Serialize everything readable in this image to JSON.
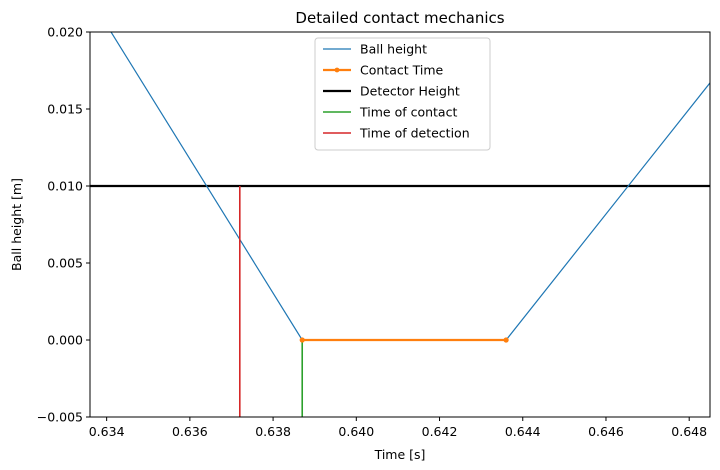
{
  "chart_data": {
    "type": "line",
    "title": "Detailed contact mechanics",
    "xlabel": "Time [s]",
    "ylabel": "Ball height [m]",
    "xlim": [
      0.6336,
      0.6485
    ],
    "ylim": [
      -0.005,
      0.02
    ],
    "xticks": [
      0.634,
      0.636,
      0.638,
      0.64,
      0.642,
      0.644,
      0.646,
      0.648
    ],
    "xtick_labels": [
      "0.634",
      "0.636",
      "0.638",
      "0.640",
      "0.642",
      "0.644",
      "0.646",
      "0.648"
    ],
    "yticks": [
      -0.005,
      0.0,
      0.005,
      0.01,
      0.015,
      0.02
    ],
    "ytick_labels": [
      "−0.005",
      "0.000",
      "0.005",
      "0.010",
      "0.015",
      "0.020"
    ],
    "grid": false,
    "legend_position": "top-center",
    "series": [
      {
        "name": "Ball height",
        "kind": "line",
        "color": "#1f77b4",
        "points": [
          [
            0.6336,
            0.0222
          ],
          [
            0.6387,
            0.0
          ],
          [
            0.6436,
            0.0
          ],
          [
            0.649,
            0.0184
          ]
        ]
      },
      {
        "name": "Contact Time",
        "kind": "line-markers",
        "color": "#ff7f0e",
        "points": [
          [
            0.6387,
            0.0
          ],
          [
            0.6436,
            0.0
          ]
        ]
      },
      {
        "name": "Detector Height",
        "kind": "hline",
        "color": "#000000",
        "y": 0.01
      },
      {
        "name": "Time of contact",
        "kind": "vline-segment",
        "color": "#2ca02c",
        "x": 0.6387,
        "y_from": -0.005,
        "y_to": 0.0
      },
      {
        "name": "Time of detection",
        "kind": "vline-segment",
        "color": "#d62728",
        "x": 0.6372,
        "y_from": -0.005,
        "y_to": 0.01
      }
    ]
  }
}
